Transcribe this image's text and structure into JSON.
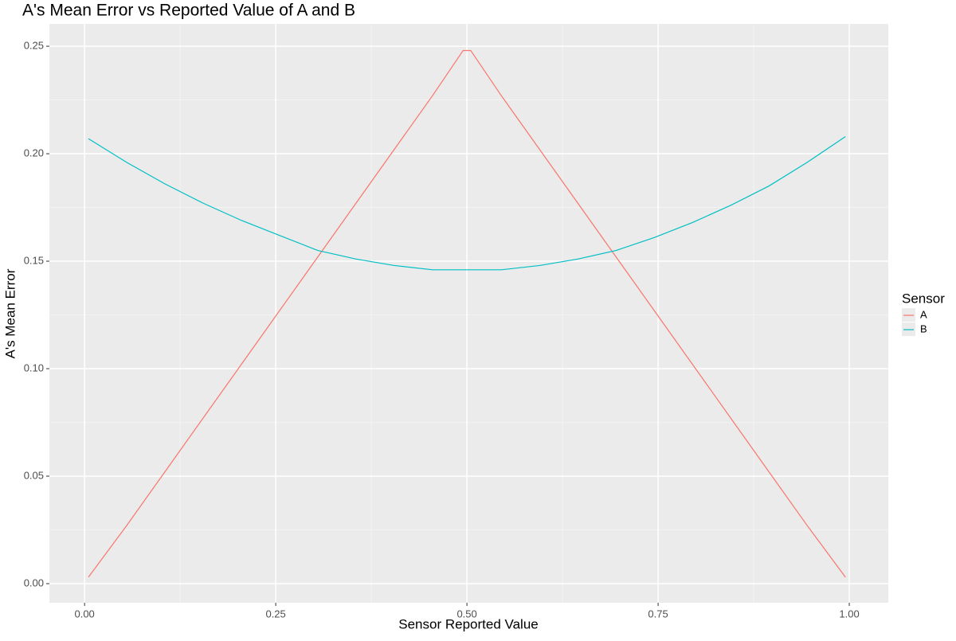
{
  "chart_data": {
    "type": "line",
    "title": "A's Mean Error vs Reported Value of A and B",
    "x_label": "Sensor Reported Value",
    "y_label": "A's Mean Error",
    "legend_title": "Sensor",
    "legend_position": "right",
    "grid": true,
    "xlim": [
      -0.046,
      1.051
    ],
    "ylim": [
      -0.0089,
      0.2604
    ],
    "xticks": [
      {
        "value": 0,
        "label": "0.00"
      },
      {
        "value": 0.25,
        "label": "0.25"
      },
      {
        "value": 0.5,
        "label": "0.50"
      },
      {
        "value": 0.75,
        "label": "0.75"
      },
      {
        "value": 1,
        "label": "1.00"
      }
    ],
    "yticks": [
      {
        "value": 0,
        "label": "0.00"
      },
      {
        "value": 0.05,
        "label": "0.05"
      },
      {
        "value": 0.1,
        "label": "0.10"
      },
      {
        "value": 0.15,
        "label": "0.15"
      },
      {
        "value": 0.2,
        "label": "0.20"
      },
      {
        "value": 0.25,
        "label": "0.25"
      }
    ],
    "x_minor_ticks": [
      0.125,
      0.375,
      0.625,
      0.875
    ],
    "y_minor_ticks": [
      0.025,
      0.075,
      0.125,
      0.175,
      0.225
    ],
    "x": [
      0.005,
      0.055,
      0.105,
      0.155,
      0.205,
      0.255,
      0.305,
      0.355,
      0.405,
      0.455,
      0.495,
      0.505,
      0.545,
      0.595,
      0.645,
      0.695,
      0.745,
      0.795,
      0.845,
      0.895,
      0.945,
      0.995
    ],
    "series": [
      {
        "name": "A",
        "color": "#F8766D",
        "values": [
          0.003,
          0.027,
          0.052,
          0.077,
          0.102,
          0.127,
          0.152,
          0.177,
          0.202,
          0.227,
          0.248,
          0.248,
          0.227,
          0.202,
          0.177,
          0.152,
          0.127,
          0.102,
          0.077,
          0.052,
          0.027,
          0.003
        ]
      },
      {
        "name": "B",
        "color": "#00BFC4",
        "values": [
          0.207,
          0.196,
          0.186,
          0.177,
          0.169,
          0.162,
          0.155,
          0.151,
          0.148,
          0.146,
          0.146,
          0.146,
          0.146,
          0.148,
          0.151,
          0.155,
          0.161,
          0.168,
          0.176,
          0.185,
          0.196,
          0.208
        ]
      }
    ]
  }
}
